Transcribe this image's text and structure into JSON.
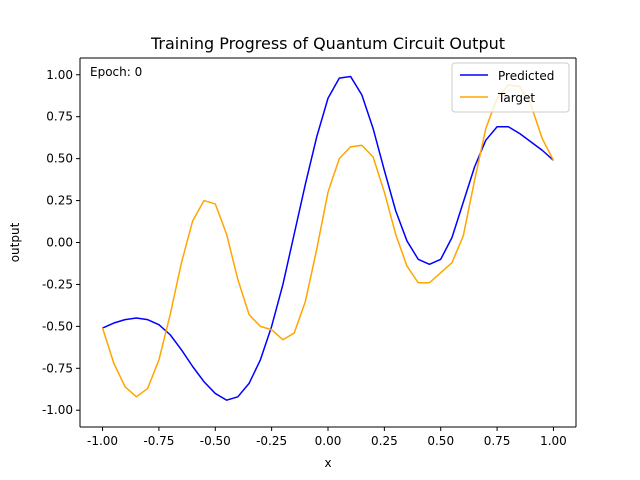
{
  "chart_data": {
    "type": "line",
    "title": "Training Progress of Quantum Circuit Output",
    "xlabel": "x",
    "ylabel": "output",
    "xlim": [
      -1.1,
      1.1
    ],
    "ylim": [
      -1.1,
      1.1
    ],
    "xticks": [
      "-1.00",
      "-0.75",
      "-0.50",
      "-0.25",
      "0.00",
      "0.25",
      "0.50",
      "0.75",
      "1.00"
    ],
    "yticks": [
      "-1.00",
      "-0.75",
      "-0.50",
      "-0.25",
      "0.00",
      "0.25",
      "0.50",
      "0.75",
      "1.00"
    ],
    "grid": false,
    "legend_position": "top-right",
    "annotation": "Epoch: 0",
    "series": [
      {
        "name": "Predicted",
        "color": "#0000ff",
        "x": [
          -1.0,
          -0.95,
          -0.9,
          -0.85,
          -0.8,
          -0.75,
          -0.7,
          -0.65,
          -0.6,
          -0.55,
          -0.5,
          -0.45,
          -0.4,
          -0.35,
          -0.3,
          -0.25,
          -0.2,
          -0.15,
          -0.1,
          -0.05,
          0.0,
          0.05,
          0.1,
          0.15,
          0.2,
          0.25,
          0.3,
          0.35,
          0.4,
          0.45,
          0.5,
          0.55,
          0.6,
          0.65,
          0.7,
          0.75,
          0.8,
          0.85,
          0.9,
          0.95,
          1.0
        ],
        "y": [
          -0.51,
          -0.48,
          -0.46,
          -0.45,
          -0.46,
          -0.49,
          -0.55,
          -0.64,
          -0.74,
          -0.83,
          -0.9,
          -0.94,
          -0.92,
          -0.84,
          -0.7,
          -0.5,
          -0.25,
          0.05,
          0.35,
          0.63,
          0.86,
          0.98,
          0.99,
          0.88,
          0.68,
          0.43,
          0.19,
          0.01,
          -0.1,
          -0.13,
          -0.1,
          0.03,
          0.24,
          0.45,
          0.61,
          0.69,
          0.69,
          0.65,
          0.6,
          0.55,
          0.49
        ]
      },
      {
        "name": "Target",
        "color": "#ffa500",
        "x": [
          -1.0,
          -0.95,
          -0.9,
          -0.85,
          -0.8,
          -0.75,
          -0.7,
          -0.65,
          -0.6,
          -0.55,
          -0.5,
          -0.45,
          -0.4,
          -0.35,
          -0.3,
          -0.25,
          -0.2,
          -0.15,
          -0.1,
          -0.05,
          0.0,
          0.05,
          0.1,
          0.15,
          0.2,
          0.25,
          0.3,
          0.35,
          0.4,
          0.45,
          0.5,
          0.55,
          0.6,
          0.65,
          0.7,
          0.75,
          0.8,
          0.85,
          0.9,
          0.95,
          1.0
        ],
        "y": [
          -0.51,
          -0.72,
          -0.86,
          -0.92,
          -0.87,
          -0.7,
          -0.43,
          -0.12,
          0.13,
          0.25,
          0.23,
          0.05,
          -0.22,
          -0.43,
          -0.5,
          -0.52,
          -0.58,
          -0.54,
          -0.35,
          -0.04,
          0.3,
          0.5,
          0.57,
          0.58,
          0.51,
          0.3,
          0.05,
          -0.14,
          -0.24,
          -0.24,
          -0.18,
          -0.12,
          0.04,
          0.37,
          0.68,
          0.86,
          0.94,
          0.93,
          0.82,
          0.62,
          0.49
        ]
      }
    ]
  }
}
